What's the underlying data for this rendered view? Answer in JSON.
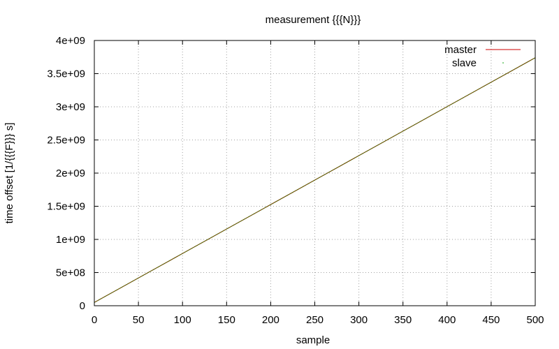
{
  "chart_data": {
    "type": "line",
    "title": "measurement {{{N}}}",
    "xlabel": "sample",
    "ylabel": "time offset [1/{{{F}}} s]",
    "xlim": [
      0,
      500
    ],
    "ylim": [
      0,
      4000000000
    ],
    "xticks": [
      0,
      50,
      100,
      150,
      200,
      250,
      300,
      350,
      400,
      450,
      500
    ],
    "xtick_labels": [
      "0",
      "50",
      "100",
      "150",
      "200",
      "250",
      "300",
      "350",
      "400",
      "450",
      "500"
    ],
    "yticks": [
      0,
      500000000,
      1000000000,
      1500000000,
      2000000000,
      2500000000,
      3000000000,
      3500000000,
      4000000000
    ],
    "ytick_labels": [
      "0",
      "5e+08",
      "1e+09",
      "1.5e+09",
      "2e+09",
      "2.5e+09",
      "3e+09",
      "3.5e+09",
      "4e+09"
    ],
    "grid": true,
    "legend_position": "top-right",
    "series": [
      {
        "name": "master",
        "color": "#cc0000",
        "style": "line",
        "x": [
          0,
          500
        ],
        "y": [
          50000000,
          3740000000
        ]
      },
      {
        "name": "slave",
        "color": "#00a000",
        "style": "points",
        "x": [
          0,
          500
        ],
        "y": [
          50000000,
          3740000000
        ]
      }
    ]
  }
}
